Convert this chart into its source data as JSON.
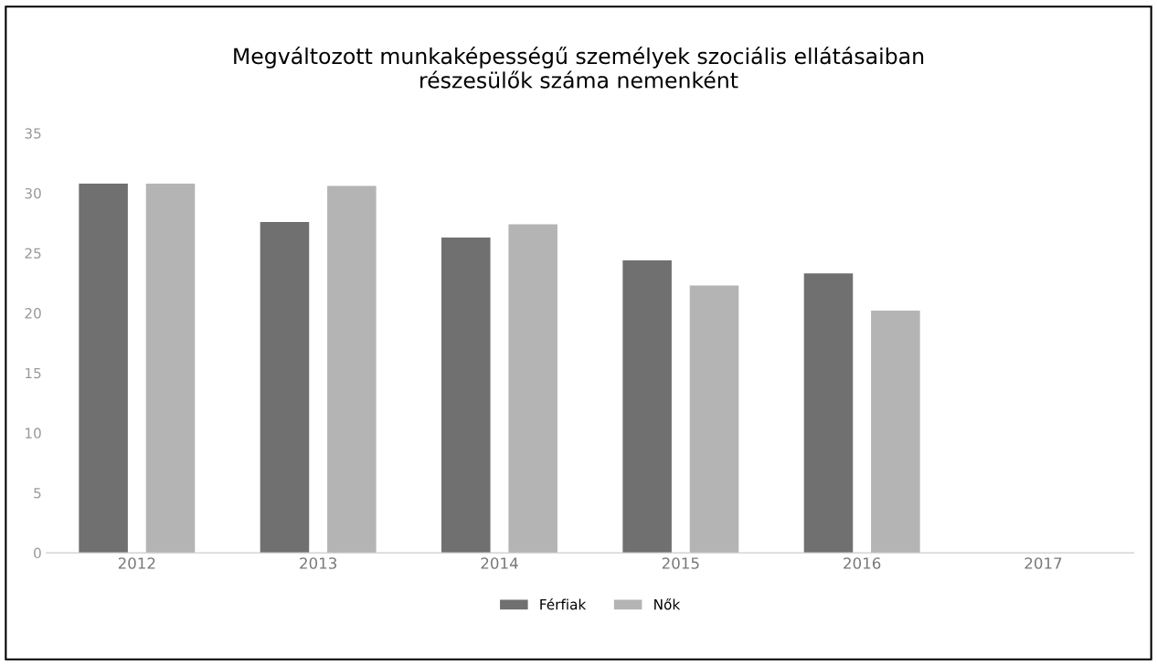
{
  "chart_data": {
    "type": "bar",
    "title": "Megváltozott munkaképességű személyek szociális ellátásaiban\nrészesülők száma nemenként",
    "categories": [
      "2012",
      "2013",
      "2014",
      "2015",
      "2016",
      "2017"
    ],
    "series": [
      {
        "name": "Férfiak",
        "color": "#707070",
        "values": [
          30.8,
          27.6,
          26.3,
          24.4,
          23.3,
          null
        ]
      },
      {
        "name": "Nők",
        "color": "#b4b4b4",
        "values": [
          30.8,
          30.6,
          27.4,
          22.3,
          20.2,
          null
        ]
      }
    ],
    "ylim": [
      0,
      35
    ],
    "yticks": [
      0,
      5,
      10,
      15,
      20,
      25,
      30,
      35
    ],
    "grid": false,
    "legend": "bottom"
  }
}
